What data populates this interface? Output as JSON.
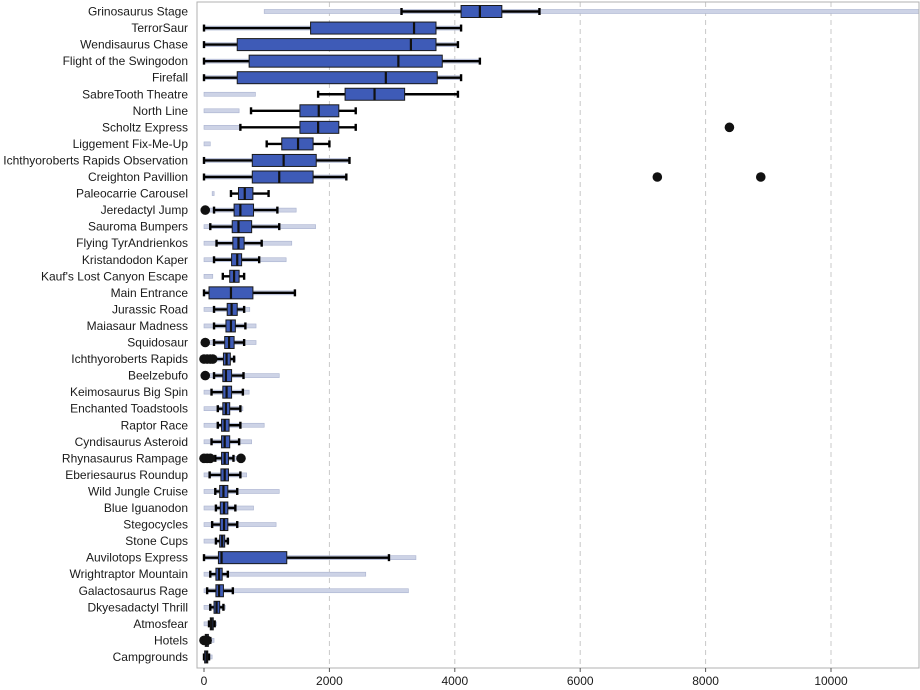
{
  "chart_data": {
    "type": "boxplot",
    "title": "",
    "xlabel": "",
    "ylabel": "",
    "xlim": [
      -100,
      11500
    ],
    "xticks": [
      0,
      2000,
      4000,
      6000,
      8000,
      10000
    ],
    "grid": "vertical dashed",
    "colors": {
      "box": "#3e5bb7",
      "box_edge": "#1a1a1a",
      "range_bar": "#cdd3e6",
      "whisker": "#000000",
      "grid": "#c8c8c8"
    },
    "categories": [
      "Grinosaurus Stage",
      "TerrorSaur",
      "Wendisaurus Chase",
      "Flight of the Swingodon",
      "Firefall",
      "SabreTooth Theatre",
      "North Line",
      "Scholtz Express",
      "Liggement Fix-Me-Up",
      "Ichthyoroberts Rapids Observation",
      "Creighton Pavillion",
      "Paleocarrie Carousel",
      "Jeredactyl Jump",
      "Sauroma Bumpers",
      "Flying TyrAndrienkos",
      "Kristandodon Kaper",
      "Kauf's Lost Canyon Escape",
      "Main Entrance",
      "Jurassic Road",
      "Maiasaur Madness",
      "Squidosaur",
      "Ichthyoroberts Rapids",
      "Beelzebufo",
      "Keimosaurus Big Spin",
      "Enchanted Toadstools",
      "Raptor Race",
      "Cyndisaurus Asteroid",
      "Rhynasaurus Rampage",
      "Eberiesaurus Roundup",
      "Wild Jungle Cruise",
      "Blue Iguanodon",
      "Stegocycles",
      "Stone Cups",
      "Auvilotops Express",
      "Wrightraptor Mountain",
      "Galactosaurus Rage",
      "Dkyesadactyl Thrill",
      "Atmosfear",
      "Hotels",
      "Campgrounds"
    ],
    "boxes": [
      {
        "range": [
          960,
          11500
        ],
        "whisker": [
          3150,
          5350
        ],
        "q1": 4100,
        "median": 4400,
        "q3": 4750,
        "outliers": []
      },
      {
        "range": [
          0,
          4100
        ],
        "whisker": [
          0,
          4100
        ],
        "q1": 1700,
        "median": 3350,
        "q3": 3700,
        "outliers": []
      },
      {
        "range": [
          0,
          4050
        ],
        "whisker": [
          0,
          4050
        ],
        "q1": 530,
        "median": 3300,
        "q3": 3700,
        "outliers": []
      },
      {
        "range": [
          0,
          4400
        ],
        "whisker": [
          0,
          4400
        ],
        "q1": 720,
        "median": 3100,
        "q3": 3800,
        "outliers": []
      },
      {
        "range": [
          0,
          4100
        ],
        "whisker": [
          0,
          4100
        ],
        "q1": 530,
        "median": 2900,
        "q3": 3720,
        "outliers": []
      },
      {
        "range": [
          0,
          820
        ],
        "whisker": [
          1820,
          4050
        ],
        "q1": 2250,
        "median": 2720,
        "q3": 3200,
        "outliers": []
      },
      {
        "range": [
          0,
          560
        ],
        "whisker": [
          750,
          2420
        ],
        "q1": 1530,
        "median": 1830,
        "q3": 2150,
        "outliers": []
      },
      {
        "range": [
          0,
          580
        ],
        "whisker": [
          580,
          2420
        ],
        "q1": 1530,
        "median": 1820,
        "q3": 2150,
        "outliers": [
          8380
        ]
      },
      {
        "range": [
          0,
          100
        ],
        "whisker": [
          1000,
          2000
        ],
        "q1": 1240,
        "median": 1500,
        "q3": 1740,
        "outliers": []
      },
      {
        "range": [
          0,
          2320
        ],
        "whisker": [
          0,
          2320
        ],
        "q1": 770,
        "median": 1270,
        "q3": 1790,
        "outliers": []
      },
      {
        "range": [
          0,
          2270
        ],
        "whisker": [
          0,
          2270
        ],
        "q1": 770,
        "median": 1200,
        "q3": 1740,
        "outliers": [
          7230,
          8880
        ]
      },
      {
        "range": [
          130,
          160
        ],
        "whisker": [
          430,
          1030
        ],
        "q1": 550,
        "median": 650,
        "q3": 780,
        "outliers": []
      },
      {
        "range": [
          0,
          1470
        ],
        "whisker": [
          160,
          1170
        ],
        "q1": 480,
        "median": 580,
        "q3": 790,
        "outliers": [
          20
        ]
      },
      {
        "range": [
          0,
          1780
        ],
        "whisker": [
          100,
          1200
        ],
        "q1": 450,
        "median": 550,
        "q3": 760,
        "outliers": []
      },
      {
        "range": [
          0,
          1400
        ],
        "whisker": [
          200,
          920
        ],
        "q1": 460,
        "median": 550,
        "q3": 640,
        "outliers": []
      },
      {
        "range": [
          0,
          1310
        ],
        "whisker": [
          160,
          880
        ],
        "q1": 440,
        "median": 530,
        "q3": 600,
        "outliers": []
      },
      {
        "range": [
          0,
          140
        ],
        "whisker": [
          300,
          640
        ],
        "q1": 410,
        "median": 480,
        "q3": 560,
        "outliers": []
      },
      {
        "range": [
          0,
          1450
        ],
        "whisker": [
          0,
          1450
        ],
        "q1": 80,
        "median": 430,
        "q3": 780,
        "outliers": []
      },
      {
        "range": [
          0,
          730
        ],
        "whisker": [
          160,
          640
        ],
        "q1": 370,
        "median": 440,
        "q3": 530,
        "outliers": []
      },
      {
        "range": [
          0,
          830
        ],
        "whisker": [
          160,
          660
        ],
        "q1": 350,
        "median": 430,
        "q3": 500,
        "outliers": []
      },
      {
        "range": [
          0,
          830
        ],
        "whisker": [
          160,
          640
        ],
        "q1": 330,
        "median": 400,
        "q3": 480,
        "outliers": [
          20
        ]
      },
      {
        "range": [
          0,
          500
        ],
        "whisker": [
          160,
          480
        ],
        "q1": 310,
        "median": 360,
        "q3": 420,
        "outliers": [
          0,
          50,
          100,
          140
        ]
      },
      {
        "range": [
          0,
          1200
        ],
        "whisker": [
          160,
          630
        ],
        "q1": 300,
        "median": 350,
        "q3": 440,
        "outliers": [
          20
        ]
      },
      {
        "range": [
          0,
          720
        ],
        "whisker": [
          120,
          620
        ],
        "q1": 300,
        "median": 360,
        "q3": 440,
        "outliers": []
      },
      {
        "range": [
          0,
          620
        ],
        "whisker": [
          220,
          580
        ],
        "q1": 300,
        "median": 350,
        "q3": 410,
        "outliers": []
      },
      {
        "range": [
          0,
          960
        ],
        "whisker": [
          220,
          580
        ],
        "q1": 280,
        "median": 330,
        "q3": 400,
        "outliers": []
      },
      {
        "range": [
          0,
          760
        ],
        "whisker": [
          120,
          560
        ],
        "q1": 280,
        "median": 330,
        "q3": 410,
        "outliers": []
      },
      {
        "range": [
          0,
          530
        ],
        "whisker": [
          180,
          470
        ],
        "q1": 280,
        "median": 330,
        "q3": 390,
        "outliers": [
          0,
          50,
          100,
          590
        ]
      },
      {
        "range": [
          0,
          680
        ],
        "whisker": [
          90,
          580
        ],
        "q1": 270,
        "median": 330,
        "q3": 390,
        "outliers": []
      },
      {
        "range": [
          0,
          1200
        ],
        "whisker": [
          180,
          530
        ],
        "q1": 250,
        "median": 310,
        "q3": 380,
        "outliers": []
      },
      {
        "range": [
          0,
          790
        ],
        "whisker": [
          190,
          500
        ],
        "q1": 260,
        "median": 320,
        "q3": 380,
        "outliers": []
      },
      {
        "range": [
          0,
          1150
        ],
        "whisker": [
          130,
          530
        ],
        "q1": 260,
        "median": 320,
        "q3": 380,
        "outliers": []
      },
      {
        "range": [
          0,
          400
        ],
        "whisker": [
          190,
          380
        ],
        "q1": 250,
        "median": 290,
        "q3": 330,
        "outliers": []
      },
      {
        "range": [
          0,
          3380
        ],
        "whisker": [
          0,
          2950
        ],
        "q1": 230,
        "median": 280,
        "q3": 1320,
        "outliers": []
      },
      {
        "range": [
          0,
          2580
        ],
        "whisker": [
          100,
          380
        ],
        "q1": 190,
        "median": 240,
        "q3": 290,
        "outliers": []
      },
      {
        "range": [
          0,
          3260
        ],
        "whisker": [
          50,
          460
        ],
        "q1": 190,
        "median": 240,
        "q3": 310,
        "outliers": []
      },
      {
        "range": [
          0,
          340
        ],
        "whisker": [
          100,
          310
        ],
        "q1": 160,
        "median": 200,
        "q3": 250,
        "outliers": []
      },
      {
        "range": [
          0,
          200
        ],
        "whisker": [
          80,
          170
        ],
        "q1": 100,
        "median": 120,
        "q3": 140,
        "outliers": []
      },
      {
        "range": [
          0,
          160
        ],
        "whisker": [
          0,
          100
        ],
        "q1": 20,
        "median": 40,
        "q3": 70,
        "outliers": [
          0,
          50
        ]
      },
      {
        "range": [
          0,
          130
        ],
        "whisker": [
          0,
          80
        ],
        "q1": 10,
        "median": 40,
        "q3": 60,
        "outliers": []
      }
    ]
  }
}
